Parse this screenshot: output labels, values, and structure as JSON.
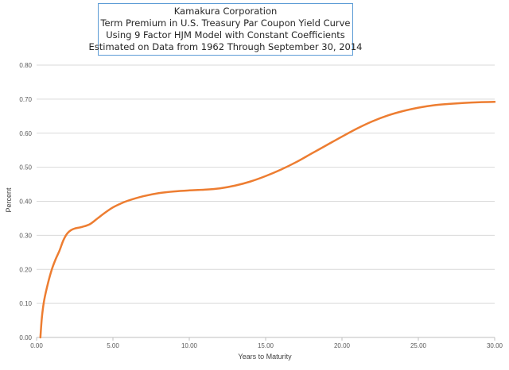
{
  "chart_data": {
    "type": "line",
    "title": [
      "Kamakura Corporation",
      "Term Premium in U.S. Treasury Par Coupon Yield Curve",
      "Using 9 Factor HJM Model with Constant Coefficients",
      "Estimated on Data from 1962 Through September 30, 2014"
    ],
    "xlabel": "Years to Maturity",
    "ylabel": "Percent",
    "xlim": [
      0,
      30
    ],
    "ylim": [
      0,
      0.8
    ],
    "x_ticks": [
      "0.00",
      "5.00",
      "10.00",
      "15.00",
      "20.00",
      "25.00",
      "30.00"
    ],
    "y_ticks": [
      "0.00",
      "0.10",
      "0.20",
      "0.30",
      "0.40",
      "0.50",
      "0.60",
      "0.70",
      "0.80"
    ],
    "grid": "horizontal",
    "legend": "none",
    "series": [
      {
        "color": "#ed7d31",
        "x": [
          0.25,
          0.35,
          0.5,
          0.75,
          1.0,
          1.25,
          1.5,
          1.75,
          2.0,
          2.25,
          2.5,
          3.0,
          3.5,
          4.0,
          4.5,
          5.0,
          5.5,
          6.0,
          7.0,
          8.0,
          9.0,
          10.0,
          11.0,
          12.0,
          13.0,
          14.0,
          15.0,
          16.0,
          17.0,
          18.0,
          19.0,
          20.0,
          21.0,
          22.0,
          23.0,
          24.0,
          25.0,
          26.0,
          27.0,
          28.0,
          29.0,
          30.0
        ],
        "y": [
          0.0,
          0.06,
          0.11,
          0.16,
          0.2,
          0.23,
          0.255,
          0.285,
          0.305,
          0.315,
          0.32,
          0.325,
          0.333,
          0.35,
          0.367,
          0.382,
          0.393,
          0.402,
          0.415,
          0.424,
          0.429,
          0.432,
          0.434,
          0.438,
          0.446,
          0.458,
          0.474,
          0.493,
          0.515,
          0.54,
          0.565,
          0.59,
          0.614,
          0.635,
          0.652,
          0.665,
          0.675,
          0.682,
          0.686,
          0.689,
          0.691,
          0.692
        ]
      }
    ]
  }
}
